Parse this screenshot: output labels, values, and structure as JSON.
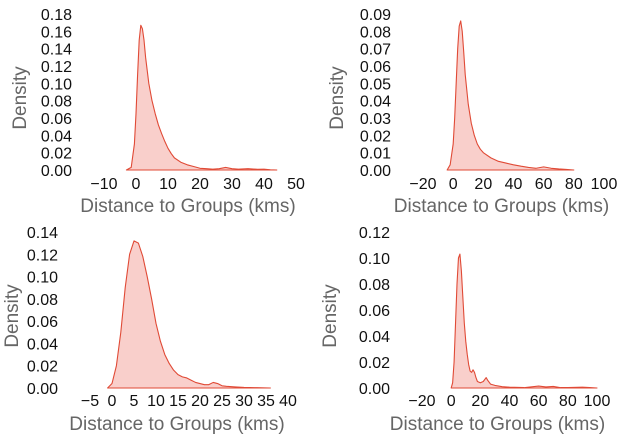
{
  "chart_data": [
    {
      "type": "area",
      "xlabel": "Distance to Groups (kms)",
      "ylabel": "Density",
      "xlim": [
        -10,
        50
      ],
      "ylim": [
        0,
        0.18
      ],
      "xticks": [
        -10,
        0,
        10,
        20,
        30,
        40,
        50
      ],
      "xtick_labels": [
        "−10",
        "0",
        "10",
        "20",
        "30",
        "40",
        "50"
      ],
      "yticks": [
        0,
        0.02,
        0.04,
        0.06,
        0.08,
        0.1,
        0.12,
        0.14,
        0.16,
        0.18
      ],
      "ytick_labels": [
        "0.00",
        "0.02",
        "0.04",
        "0.06",
        "0.08",
        "0.10",
        "0.12",
        "0.14",
        "0.16",
        "0.18"
      ],
      "grid": false,
      "series": [
        {
          "color": "#e04a36",
          "points": [
            [
              -3,
              0
            ],
            [
              -1.5,
              0.003
            ],
            [
              -0.5,
              0.03
            ],
            [
              0,
              0.065
            ],
            [
              0.5,
              0.11
            ],
            [
              1,
              0.15
            ],
            [
              1.5,
              0.167
            ],
            [
              2,
              0.163
            ],
            [
              2.5,
              0.15
            ],
            [
              3,
              0.13
            ],
            [
              4,
              0.1
            ],
            [
              5,
              0.08
            ],
            [
              6,
              0.065
            ],
            [
              7,
              0.052
            ],
            [
              8,
              0.042
            ],
            [
              9,
              0.033
            ],
            [
              10,
              0.025
            ],
            [
              11,
              0.019
            ],
            [
              12,
              0.014
            ],
            [
              14,
              0.009
            ],
            [
              16,
              0.006
            ],
            [
              18,
              0.004
            ],
            [
              20,
              0.002
            ],
            [
              22,
              0.0015
            ],
            [
              24,
              0.001
            ],
            [
              26,
              0.0015
            ],
            [
              28,
              0.003
            ],
            [
              30,
              0.0015
            ],
            [
              32,
              0.001
            ],
            [
              35,
              0.0015
            ],
            [
              38,
              0.0008
            ],
            [
              40,
              0.001
            ],
            [
              42,
              0.0003
            ],
            [
              44,
              0
            ]
          ]
        }
      ]
    },
    {
      "type": "area",
      "xlabel": "Distance to Groups (kms)",
      "ylabel": "Density",
      "xlim": [
        -20,
        100
      ],
      "ylim": [
        0,
        0.09
      ],
      "xticks": [
        -20,
        0,
        20,
        40,
        60,
        80,
        100
      ],
      "xtick_labels": [
        "−20",
        "0",
        "20",
        "40",
        "60",
        "80",
        "100"
      ],
      "yticks": [
        0,
        0.01,
        0.02,
        0.03,
        0.04,
        0.05,
        0.06,
        0.07,
        0.08,
        0.09
      ],
      "ytick_labels": [
        "0.00",
        "0.01",
        "0.02",
        "0.03",
        "0.04",
        "0.05",
        "0.06",
        "0.07",
        "0.08",
        "0.09"
      ],
      "grid": false,
      "series": [
        {
          "color": "#e04a36",
          "points": [
            [
              -4,
              0
            ],
            [
              -2,
              0.003
            ],
            [
              0,
              0.015
            ],
            [
              1,
              0.03
            ],
            [
              2,
              0.05
            ],
            [
              3,
              0.07
            ],
            [
              4,
              0.083
            ],
            [
              5,
              0.086
            ],
            [
              6,
              0.08
            ],
            [
              7,
              0.068
            ],
            [
              8,
              0.055
            ],
            [
              10,
              0.038
            ],
            [
              12,
              0.027
            ],
            [
              14,
              0.02
            ],
            [
              16,
              0.015
            ],
            [
              18,
              0.012
            ],
            [
              20,
              0.01
            ],
            [
              25,
              0.007
            ],
            [
              30,
              0.005
            ],
            [
              35,
              0.004
            ],
            [
              40,
              0.003
            ],
            [
              45,
              0.0022
            ],
            [
              50,
              0.0015
            ],
            [
              55,
              0.001
            ],
            [
              60,
              0.0018
            ],
            [
              65,
              0.001
            ],
            [
              70,
              0.0006
            ],
            [
              75,
              0.0003
            ],
            [
              80,
              0
            ]
          ]
        }
      ]
    },
    {
      "type": "area",
      "xlabel": "Distance to Groups (kms)",
      "ylabel": "Density",
      "xlim": [
        -5,
        40
      ],
      "ylim": [
        0,
        0.14
      ],
      "xticks": [
        -5,
        0,
        5,
        10,
        15,
        20,
        25,
        30,
        35,
        40
      ],
      "xtick_labels": [
        "−5",
        "0",
        "5",
        "10",
        "15",
        "20",
        "25",
        "30",
        "35",
        "40"
      ],
      "yticks": [
        0,
        0.02,
        0.04,
        0.06,
        0.08,
        0.1,
        0.12,
        0.14
      ],
      "ytick_labels": [
        "0.00",
        "0.02",
        "0.04",
        "0.06",
        "0.08",
        "0.10",
        "0.12",
        "0.14"
      ],
      "grid": false,
      "series": [
        {
          "color": "#e04a36",
          "points": [
            [
              -1,
              0
            ],
            [
              0,
              0.004
            ],
            [
              1,
              0.02
            ],
            [
              2,
              0.05
            ],
            [
              3,
              0.09
            ],
            [
              4,
              0.12
            ],
            [
              5,
              0.132
            ],
            [
              6,
              0.13
            ],
            [
              7,
              0.118
            ],
            [
              8,
              0.1
            ],
            [
              9,
              0.08
            ],
            [
              10,
              0.058
            ],
            [
              11,
              0.042
            ],
            [
              12,
              0.03
            ],
            [
              13,
              0.022
            ],
            [
              14,
              0.016
            ],
            [
              15,
              0.012
            ],
            [
              16,
              0.01
            ],
            [
              17,
              0.009
            ],
            [
              18,
              0.007
            ],
            [
              19,
              0.005
            ],
            [
              20,
              0.004
            ],
            [
              21,
              0.003
            ],
            [
              22,
              0.003
            ],
            [
              23,
              0.005
            ],
            [
              24,
              0.004
            ],
            [
              25,
              0.002
            ],
            [
              26,
              0.0015
            ],
            [
              28,
              0.001
            ],
            [
              30,
              0.0005
            ],
            [
              33,
              0.0003
            ],
            [
              36,
              0
            ]
          ]
        }
      ]
    },
    {
      "type": "area",
      "xlabel": "Distance to Groups (kms)",
      "ylabel": "Density",
      "xlim": [
        -20,
        100
      ],
      "ylim": [
        0,
        0.12
      ],
      "xticks": [
        -20,
        0,
        20,
        40,
        60,
        80,
        100
      ],
      "xtick_labels": [
        "−20",
        "0",
        "20",
        "40",
        "60",
        "80",
        "100"
      ],
      "yticks": [
        0,
        0.02,
        0.04,
        0.06,
        0.08,
        0.1,
        0.12
      ],
      "ytick_labels": [
        "0.00",
        "0.02",
        "0.04",
        "0.06",
        "0.08",
        "0.10",
        "0.12"
      ],
      "grid": false,
      "series": [
        {
          "color": "#e04a36",
          "points": [
            [
              0,
              0
            ],
            [
              1,
              0.004
            ],
            [
              2,
              0.02
            ],
            [
              3,
              0.05
            ],
            [
              4,
              0.08
            ],
            [
              5,
              0.1
            ],
            [
              6,
              0.103
            ],
            [
              7,
              0.09
            ],
            [
              8,
              0.07
            ],
            [
              9,
              0.05
            ],
            [
              10,
              0.036
            ],
            [
              11,
              0.026
            ],
            [
              12,
              0.018
            ],
            [
              13,
              0.013
            ],
            [
              14,
              0.012
            ],
            [
              15,
              0.014
            ],
            [
              16,
              0.012
            ],
            [
              17,
              0.008
            ],
            [
              18,
              0.005
            ],
            [
              20,
              0.004
            ],
            [
              22,
              0.005
            ],
            [
              24,
              0.008
            ],
            [
              25,
              0.006
            ],
            [
              27,
              0.003
            ],
            [
              30,
              0.002
            ],
            [
              35,
              0.001
            ],
            [
              40,
              0.0006
            ],
            [
              50,
              0.0003
            ],
            [
              60,
              0.0015
            ],
            [
              65,
              0.0008
            ],
            [
              70,
              0.0012
            ],
            [
              75,
              0.0003
            ],
            [
              80,
              0.0003
            ],
            [
              90,
              0.0006
            ],
            [
              95,
              0.0003
            ],
            [
              100,
              0
            ]
          ]
        }
      ]
    }
  ]
}
